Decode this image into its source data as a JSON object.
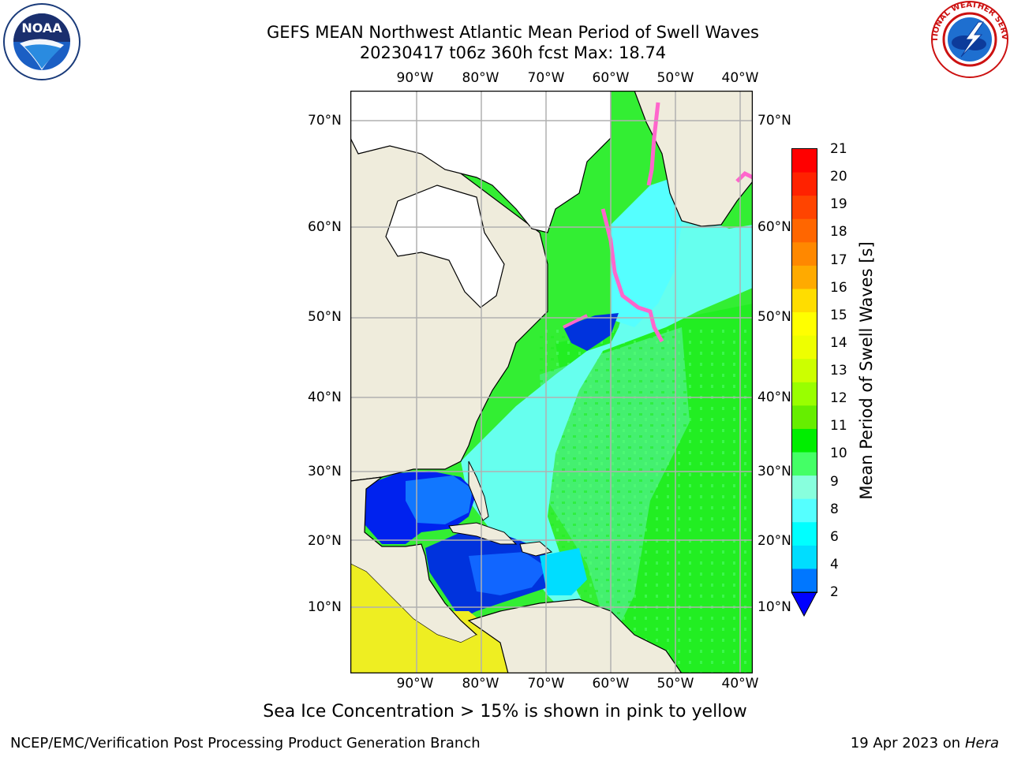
{
  "header": {
    "title_line1": "GEFS MEAN Northwest Atlantic Mean Period of Swell Waves",
    "title_line2": "20230417 t06z 360h fcst   Max: 18.74"
  },
  "map": {
    "lon_labels": [
      "90°W",
      "80°W",
      "70°W",
      "60°W",
      "50°W",
      "40°W"
    ],
    "lat_labels": [
      "70°N",
      "60°N",
      "50°N",
      "40°N",
      "30°N",
      "20°N",
      "10°N"
    ],
    "colors": {
      "land": "#efecdc",
      "ice_land": "#ffffff",
      "grid": "#b0b0b0",
      "coast": "#000000"
    }
  },
  "colorbar": {
    "label": "Mean Period of Swell Waves [s]",
    "ticks": [
      "21",
      "20",
      "19",
      "18",
      "17",
      "16",
      "15",
      "14",
      "13",
      "12",
      "11",
      "10",
      "9",
      "8",
      "6",
      "4",
      "2"
    ],
    "colors_top_to_bottom": [
      "#ff0000",
      "#ff2200",
      "#ff4400",
      "#ff6600",
      "#ff8800",
      "#ffaa00",
      "#ffdd00",
      "#ffff00",
      "#eeff00",
      "#ccff00",
      "#99ff00",
      "#66ee00",
      "#00ee00",
      "#44ff66",
      "#88ffdd",
      "#55ffff",
      "#00ffff",
      "#00ddff",
      "#0077ff"
    ],
    "extend_color": "#0000ff"
  },
  "footer": {
    "note": "Sea Ice Concentration > 15% is shown in pink to yellow",
    "credit_left": "NCEP/EMC/Verification Post Processing Product Generation Branch",
    "credit_date": "19 Apr 2023 on ",
    "credit_machine": "Hera"
  },
  "logos": {
    "noaa_text": "NOAA",
    "nws_text": "NATIONAL WEATHER SERVICE"
  }
}
